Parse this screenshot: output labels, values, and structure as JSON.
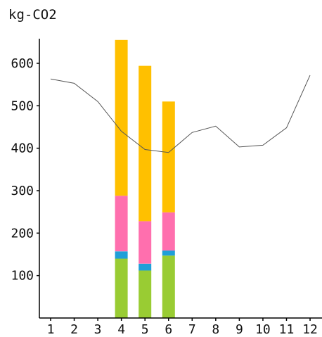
{
  "chart_data": {
    "type": "bar",
    "title": "",
    "unit_label": "kg-CO2",
    "categories": [
      "1",
      "2",
      "3",
      "4",
      "5",
      "6",
      "7",
      "8",
      "9",
      "10",
      "11",
      "12"
    ],
    "ylim": [
      0,
      660
    ],
    "yticks": [
      100,
      200,
      300,
      400,
      500,
      600
    ],
    "grid": false,
    "stacked": true,
    "series": [
      {
        "color": "#99cc33",
        "values": [
          0,
          0,
          0,
          140,
          112,
          147,
          0,
          0,
          0,
          0,
          0,
          0
        ]
      },
      {
        "color": "#1f9fd8",
        "values": [
          0,
          0,
          0,
          17,
          16,
          12,
          0,
          0,
          0,
          0,
          0,
          0
        ]
      },
      {
        "color": "#ff6fae",
        "values": [
          0,
          0,
          0,
          131,
          100,
          90,
          0,
          0,
          0,
          0,
          0,
          0
        ]
      },
      {
        "color": "#ffc000",
        "values": [
          0,
          0,
          0,
          367,
          366,
          261,
          0,
          0,
          0,
          0,
          0,
          0
        ]
      }
    ],
    "line": {
      "color": "#555555",
      "values": [
        563,
        553,
        510,
        440,
        397,
        390,
        437,
        452,
        403,
        407,
        448,
        572
      ]
    }
  }
}
